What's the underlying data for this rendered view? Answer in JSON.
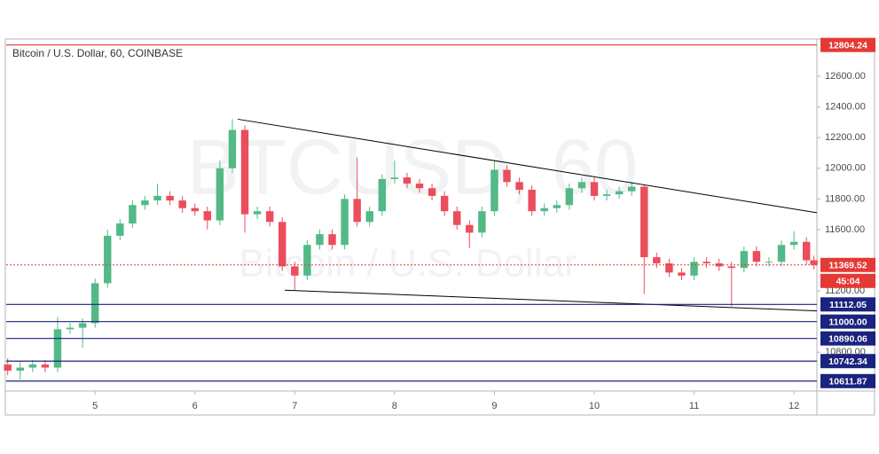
{
  "chart_data": {
    "type": "candlestick",
    "title": "Bitcoin / U.S. Dollar, 60, COINBASE",
    "watermark": [
      "BTCUSD, 60",
      "Bitcoin / U.S. Dollar"
    ],
    "x": [
      4.125,
      4.25,
      4.375,
      4.5,
      4.625,
      4.75,
      4.875,
      5.0,
      5.125,
      5.25,
      5.375,
      5.5,
      5.625,
      5.75,
      5.875,
      6.0,
      6.125,
      6.25,
      6.375,
      6.5,
      6.625,
      6.75,
      6.875,
      7.0,
      7.125,
      7.25,
      7.375,
      7.5,
      7.625,
      7.75,
      7.875,
      8.0,
      8.125,
      8.25,
      8.375,
      8.5,
      8.625,
      8.75,
      8.875,
      9.0,
      9.125,
      9.25,
      9.375,
      9.5,
      9.625,
      9.75,
      9.875,
      10.0,
      10.125,
      10.25,
      10.375,
      10.5,
      10.625,
      10.75,
      10.875,
      11.0,
      11.125,
      11.25,
      11.375,
      11.5,
      11.625,
      11.75,
      11.875,
      12.0,
      12.125,
      12.2
    ],
    "open": [
      10720,
      10680,
      10700,
      10720,
      10700,
      10950,
      10960,
      10990,
      11250,
      11560,
      11640,
      11760,
      11790,
      11820,
      11790,
      11740,
      11720,
      11660,
      12000,
      12250,
      11700,
      11720,
      11650,
      11360,
      11300,
      11500,
      11570,
      11500,
      11800,
      11650,
      11720,
      11930,
      11940,
      11900,
      11870,
      11820,
      11720,
      11630,
      11580,
      11720,
      11990,
      11910,
      11860,
      11720,
      11740,
      11760,
      11870,
      11910,
      11820,
      11830,
      11850,
      11880,
      11420,
      11380,
      11320,
      11300,
      11390,
      11380,
      11360,
      11350,
      11460,
      11390,
      11390,
      11500,
      11520,
      11400
    ],
    "high": [
      10760,
      10740,
      10750,
      10750,
      11030,
      10990,
      11020,
      11280,
      11600,
      11670,
      11790,
      11820,
      11900,
      11850,
      11820,
      11770,
      11750,
      12050,
      12320,
      12280,
      11750,
      11750,
      11680,
      11390,
      11530,
      11600,
      11600,
      11830,
      12070,
      11750,
      11960,
      12050,
      11970,
      11930,
      11900,
      11850,
      11750,
      11660,
      11750,
      12050,
      12020,
      11940,
      11890,
      11770,
      11790,
      11900,
      11940,
      11940,
      11860,
      11880,
      11910,
      11890,
      11450,
      11410,
      11350,
      11420,
      11420,
      11410,
      11390,
      11490,
      11490,
      11420,
      11530,
      11590,
      11550,
      11430
    ],
    "low": [
      10650,
      10620,
      10670,
      10670,
      10670,
      10920,
      10830,
      10960,
      11220,
      11530,
      11610,
      11730,
      11760,
      11760,
      11710,
      11690,
      11600,
      11630,
      11970,
      11580,
      11670,
      11620,
      11330,
      11205,
      11270,
      11470,
      11470,
      11470,
      11620,
      11620,
      11690,
      11900,
      11870,
      11840,
      11790,
      11690,
      11600,
      11480,
      11550,
      11690,
      11880,
      11830,
      11690,
      11690,
      11710,
      11730,
      11840,
      11790,
      11790,
      11800,
      11820,
      11180,
      11350,
      11290,
      11270,
      11270,
      11350,
      11330,
      11100,
      11320,
      11360,
      11360,
      11360,
      11470,
      11370,
      11340
    ],
    "close": [
      10680,
      10700,
      10720,
      10700,
      10950,
      10960,
      10990,
      11250,
      11560,
      11640,
      11760,
      11790,
      11820,
      11790,
      11740,
      11720,
      11660,
      12000,
      12250,
      11700,
      11720,
      11650,
      11360,
      11300,
      11500,
      11570,
      11500,
      11800,
      11650,
      11720,
      11930,
      11940,
      11900,
      11870,
      11820,
      11720,
      11630,
      11580,
      11720,
      11990,
      11910,
      11860,
      11720,
      11740,
      11760,
      11870,
      11910,
      11820,
      11830,
      11850,
      11880,
      11420,
      11380,
      11320,
      11300,
      11390,
      11380,
      11360,
      11350,
      11460,
      11390,
      11390,
      11500,
      11520,
      11400,
      11369.52
    ],
    "up_color": "#53b987",
    "down_color": "#eb4d5c",
    "xlim": [
      4.11,
      12.23
    ],
    "ylim": [
      10547,
      12843
    ],
    "xticks": [
      5,
      6,
      7,
      8,
      9,
      10,
      11,
      12
    ],
    "yticks": [
      {
        "value": 12600,
        "label": "12600.00"
      },
      {
        "value": 12400,
        "label": "12400.00"
      },
      {
        "value": 12200,
        "label": "12200.00"
      },
      {
        "value": 12000,
        "label": "12000.00"
      },
      {
        "value": 11800,
        "label": "11800.00"
      },
      {
        "value": 11600,
        "label": "11600.00"
      },
      {
        "value": 11200,
        "label": "11200.00"
      },
      {
        "value": 10800,
        "label": "10800.00"
      }
    ],
    "levels": [
      {
        "value": 12804.24,
        "color": "#e53935"
      },
      {
        "value": 11112.05,
        "color": "#1a237e"
      },
      {
        "value": 11000,
        "label": "11000.00",
        "color": "#1a237e"
      },
      {
        "value": 10890.06,
        "color": "#1a237e"
      },
      {
        "value": 10742.34,
        "color": "#1a237e"
      },
      {
        "value": 10611.87,
        "color": "#1a237e"
      }
    ],
    "current_price": {
      "value": 11369.52,
      "countdown": "45:04",
      "color": "#e53935"
    },
    "trendlines": [
      {
        "x": [
          6.43,
          12.23
        ],
        "y": [
          12320,
          11710
        ]
      },
      {
        "x": [
          6.9,
          12.23
        ],
        "y": [
          11205,
          11070
        ]
      }
    ]
  }
}
